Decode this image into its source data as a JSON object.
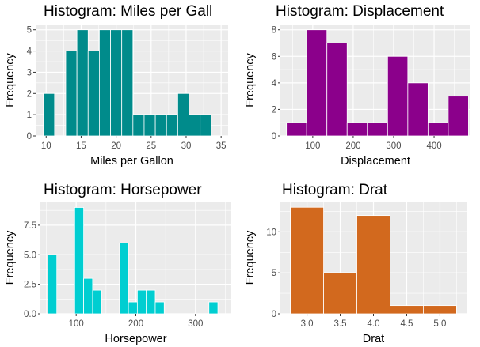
{
  "chart_data": [
    {
      "type": "bar",
      "title": "Histogram: Miles per Gall",
      "xlabel": "Miles per Gallon",
      "ylabel": "Frequency",
      "color": "#008B8B",
      "xlim": [
        8.5,
        36.0
      ],
      "ylim": [
        0,
        5.25
      ],
      "xticks": [
        10,
        15,
        20,
        25,
        30,
        35
      ],
      "yticks": [
        0,
        1,
        2,
        3,
        4,
        5
      ],
      "ytick_labels": [
        "0",
        "1",
        "2",
        "3",
        "4",
        "5"
      ],
      "bin_width": 1.6,
      "bins": [
        {
          "center": 10.4,
          "count": 2
        },
        {
          "center": 12.0,
          "count": 0
        },
        {
          "center": 13.6,
          "count": 4
        },
        {
          "center": 15.2,
          "count": 5
        },
        {
          "center": 16.8,
          "count": 4
        },
        {
          "center": 18.4,
          "count": 5
        },
        {
          "center": 20.0,
          "count": 5
        },
        {
          "center": 21.6,
          "count": 5
        },
        {
          "center": 23.2,
          "count": 1
        },
        {
          "center": 24.8,
          "count": 1
        },
        {
          "center": 26.4,
          "count": 1
        },
        {
          "center": 28.0,
          "count": 1
        },
        {
          "center": 29.6,
          "count": 2
        },
        {
          "center": 31.2,
          "count": 1
        },
        {
          "center": 32.8,
          "count": 1
        }
      ]
    },
    {
      "type": "bar",
      "title": "Histogram: Displacement",
      "xlabel": "Displacement",
      "ylabel": "Frequency",
      "color": "#8B008B",
      "xlim": [
        20,
        490
      ],
      "ylim": [
        0,
        8.4
      ],
      "xticks": [
        100,
        200,
        300,
        400
      ],
      "yticks": [
        0,
        2,
        4,
        6,
        8
      ],
      "ytick_labels": [
        "0",
        "2",
        "4",
        "6",
        "8"
      ],
      "bin_width": 50,
      "bins": [
        {
          "center": 60,
          "count": 1
        },
        {
          "center": 110,
          "count": 8
        },
        {
          "center": 160,
          "count": 7
        },
        {
          "center": 210,
          "count": 1
        },
        {
          "center": 260,
          "count": 1
        },
        {
          "center": 310,
          "count": 6
        },
        {
          "center": 360,
          "count": 4
        },
        {
          "center": 410,
          "count": 1
        },
        {
          "center": 460,
          "count": 3
        }
      ]
    },
    {
      "type": "bar",
      "title": "Histogram: Horsepower",
      "xlabel": "Horsepower",
      "ylabel": "Frequency",
      "color": "#00CED1",
      "xlim": [
        40,
        360
      ],
      "ylim": [
        0,
        9.5
      ],
      "xticks": [
        100,
        200,
        300
      ],
      "yticks": [
        0,
        2.5,
        5,
        7.5
      ],
      "ytick_labels": [
        "0.0",
        "2.5",
        "5.0",
        "7.5"
      ],
      "bin_width": 15,
      "bins": [
        {
          "center": 60,
          "count": 5
        },
        {
          "center": 75,
          "count": 0
        },
        {
          "center": 90,
          "count": 0
        },
        {
          "center": 105,
          "count": 9
        },
        {
          "center": 120,
          "count": 3
        },
        {
          "center": 135,
          "count": 2
        },
        {
          "center": 150,
          "count": 0
        },
        {
          "center": 165,
          "count": 0
        },
        {
          "center": 180,
          "count": 6
        },
        {
          "center": 195,
          "count": 1
        },
        {
          "center": 210,
          "count": 2
        },
        {
          "center": 225,
          "count": 2
        },
        {
          "center": 240,
          "count": 1
        },
        {
          "center": 255,
          "count": 0
        },
        {
          "center": 270,
          "count": 0
        },
        {
          "center": 285,
          "count": 0
        },
        {
          "center": 300,
          "count": 0
        },
        {
          "center": 315,
          "count": 0
        },
        {
          "center": 330,
          "count": 1
        }
      ]
    },
    {
      "type": "bar",
      "title": "Histogram: Drat",
      "xlabel": "Drat",
      "ylabel": "Frequency",
      "color": "#D2691E",
      "xlim": [
        2.6,
        5.4
      ],
      "ylim": [
        0,
        13.7
      ],
      "xticks": [
        3.0,
        3.5,
        4.0,
        4.5,
        5.0
      ],
      "yticks": [
        0,
        5,
        10
      ],
      "ytick_labels": [
        "0",
        "5",
        "10"
      ],
      "xtick_labels": [
        "3.0",
        "3.5",
        "4.0",
        "4.5",
        "5.0"
      ],
      "bin_width": 0.5,
      "bins": [
        {
          "center": 3.0,
          "count": 13
        },
        {
          "center": 3.5,
          "count": 5
        },
        {
          "center": 4.0,
          "count": 12
        },
        {
          "center": 4.5,
          "count": 1
        },
        {
          "center": 5.0,
          "count": 1
        }
      ]
    }
  ]
}
